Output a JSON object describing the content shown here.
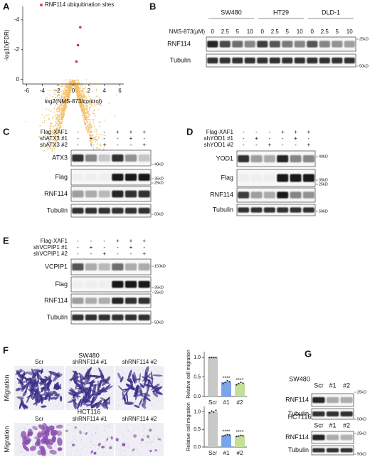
{
  "panel_labels": [
    "A",
    "B",
    "C",
    "D",
    "E",
    "F",
    "G"
  ],
  "chart_data": [
    {
      "type": "scatter",
      "x_label": "log2(NMS-873/control)",
      "y_label": "-log10(FDR)",
      "xlim": [
        -6.5,
        6.5
      ],
      "ylim": [
        0.3,
        -4.9
      ],
      "xticks": [
        -6,
        -4,
        -2,
        0,
        2,
        4,
        6
      ],
      "yticks": [
        0,
        -2,
        -4
      ],
      "legend": "top",
      "series": [
        {
          "name": "RNF114 ubiquitination sites",
          "color": "#e8413c",
          "x": [
            0.4,
            0.6,
            0.9
          ],
          "values": [
            -1.2,
            -2.3,
            -3.5
          ]
        }
      ]
    },
    {
      "type": "bar",
      "y_label": "Relative cell migration",
      "categories": [
        "Scr",
        "#1",
        "#2"
      ],
      "values": [
        1.0,
        0.37,
        0.33
      ],
      "colors": [
        "#c8c8c8",
        "#7aa5ea",
        "#c3df98"
      ],
      "annotations": [
        null,
        "****",
        "****"
      ],
      "replicates": [
        [
          1,
          1,
          1,
          1
        ],
        [
          0.33,
          0.36,
          0.4,
          0.38
        ],
        [
          0.3,
          0.33,
          0.36,
          0.34
        ]
      ],
      "ylim": [
        0,
        1.15
      ],
      "yticks": [
        {
          "value": 0,
          "label": "0.0"
        },
        {
          "value": 0.5,
          "label": "0.5"
        },
        {
          "value": 1,
          "label": "1.0"
        }
      ]
    },
    {
      "type": "bar",
      "y_label": "Relative cell migration",
      "categories": [
        "Scr",
        "#1",
        "#2"
      ],
      "values": [
        1.0,
        0.33,
        0.32
      ],
      "colors": [
        "#c8c8c8",
        "#7aa5ea",
        "#c3df98"
      ],
      "annotations": [
        null,
        "****",
        "****"
      ],
      "replicates": [
        [
          0.97,
          1.02,
          0.99,
          1.04
        ],
        [
          0.31,
          0.33,
          0.35,
          0.34
        ],
        [
          0.3,
          0.31,
          0.33,
          0.32
        ]
      ],
      "ylim": [
        0,
        1.15
      ],
      "yticks": [
        {
          "value": 0,
          "label": "0.0"
        },
        {
          "value": 0.5,
          "label": "0.5"
        },
        {
          "value": 1,
          "label": "1.0"
        }
      ]
    }
  ],
  "blots": {
    "B": {
      "groups": [
        "SW480",
        "HT29",
        "DLD-1"
      ],
      "treatment": "NMS-873(μM)",
      "doses": [
        0,
        2.5,
        5,
        10,
        0,
        2.5,
        5,
        10,
        0,
        2.5,
        5,
        10
      ],
      "rows": [
        {
          "label": "RNF114",
          "marker": "25kD"
        },
        {
          "label": "Tubulin",
          "marker": "50kD"
        }
      ]
    },
    "C": {
      "conditions": [
        {
          "label": "Flag-XAF1",
          "signs": [
            "-",
            "-",
            "-",
            "+",
            "+",
            "+"
          ]
        },
        {
          "label": "shATX3 #1",
          "signs": [
            "-",
            "+",
            "-",
            "-",
            "+",
            "-"
          ]
        },
        {
          "label": "shATX3 #2",
          "signs": [
            "-",
            "-",
            "+",
            "-",
            "-",
            "+"
          ]
        }
      ],
      "rows": [
        {
          "label": "ATX3",
          "marker": "40kD"
        },
        {
          "label": "Flag",
          "marker": "35kD"
        },
        {
          "label": "RNF114",
          "marker": "25kD"
        },
        {
          "label": "Tubulin",
          "marker": "50kD"
        }
      ]
    },
    "D": {
      "conditions": [
        {
          "label": "Flag-XAF1",
          "signs": [
            "-",
            "-",
            "-",
            "+",
            "+",
            "+"
          ]
        },
        {
          "label": "shYOD1 #1",
          "signs": [
            "-",
            "+",
            "-",
            "-",
            "+",
            "-"
          ]
        },
        {
          "label": "shYOD1 #2",
          "signs": [
            "-",
            "-",
            "+",
            "-",
            "-",
            "+"
          ]
        }
      ],
      "rows": [
        {
          "label": "YOD1",
          "marker": "40kD"
        },
        {
          "label": "Flag",
          "marker": "35kD"
        },
        {
          "label": "RNF114",
          "marker": "25kD"
        },
        {
          "label": "Tubulin",
          "marker": "50kD"
        }
      ]
    },
    "E": {
      "conditions": [
        {
          "label": "Flag-XAF1",
          "signs": [
            "-",
            "-",
            "-",
            "+",
            "+",
            "+"
          ]
        },
        {
          "label": "shVCPIP1 #1",
          "signs": [
            "-",
            "+",
            "-",
            "-",
            "+",
            "-"
          ]
        },
        {
          "label": "shVCPIP1 #2",
          "signs": [
            "-",
            "-",
            "+",
            "-",
            "-",
            "+"
          ]
        }
      ],
      "rows": [
        {
          "label": "VCPIP1",
          "marker": "150kD"
        },
        {
          "label": "Flag",
          "marker": "35kD"
        },
        {
          "label": "RNF114",
          "marker": "25kD"
        },
        {
          "label": "Tubulin",
          "marker": "50kD"
        }
      ]
    }
  },
  "migration": {
    "y_label": "Migration",
    "cell_lines": [
      "SW480",
      "HCT116"
    ],
    "columns": [
      "Scr",
      "shRNF114 #1",
      "shRNF114 #2"
    ]
  },
  "knockdown": {
    "cell_lines": [
      "SW480",
      "HCT116"
    ],
    "lanes": [
      "Scr",
      "#1",
      "#2"
    ],
    "rows": [
      {
        "label": "RNF114",
        "marker": "25kD"
      },
      {
        "label": "Tubulin",
        "marker": "50kD"
      }
    ]
  }
}
